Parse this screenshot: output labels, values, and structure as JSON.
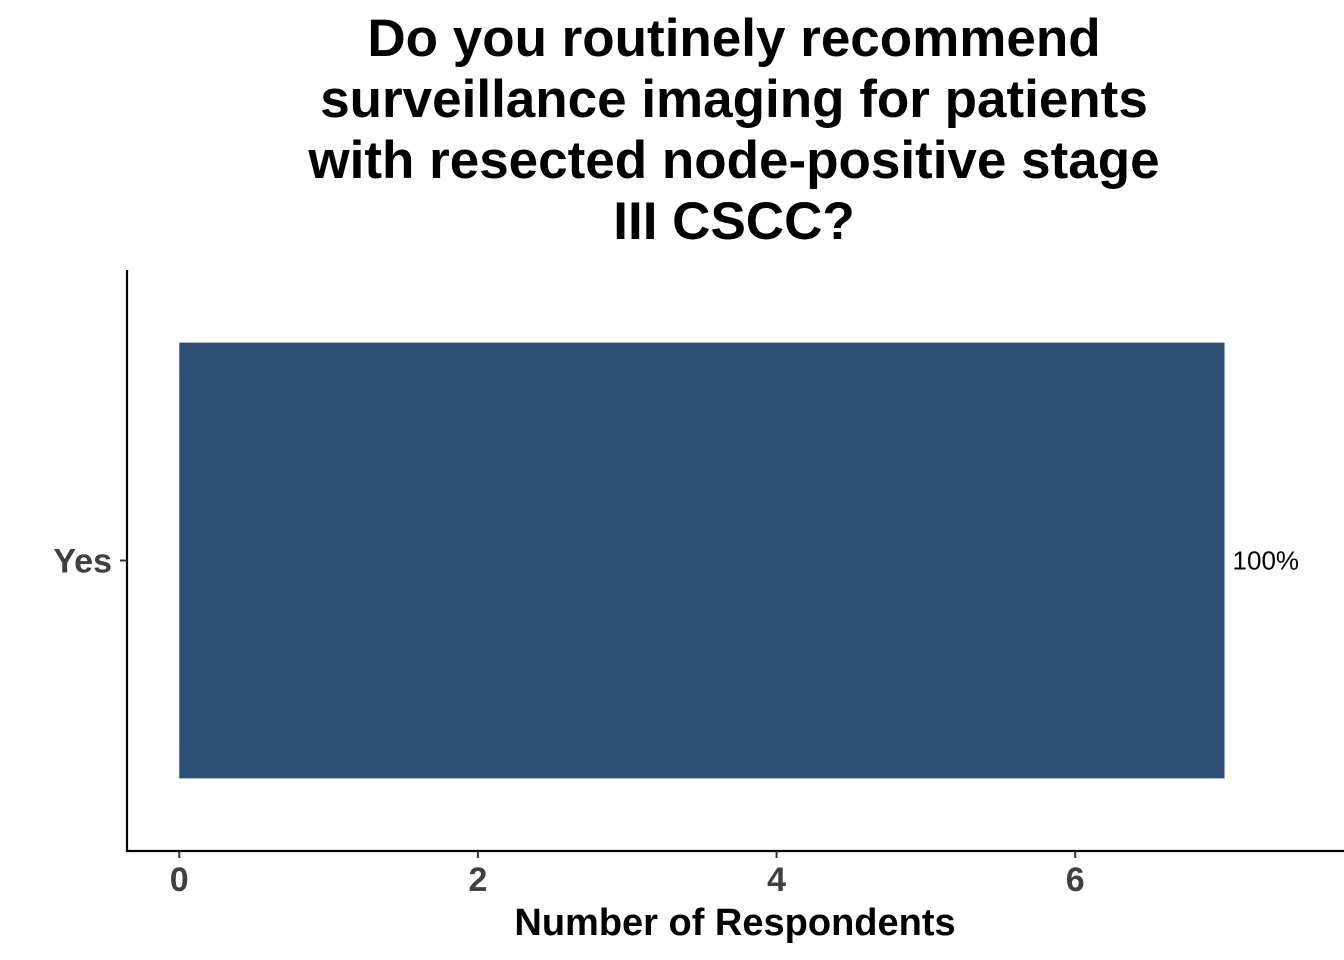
{
  "chart_data": {
    "type": "bar",
    "orientation": "horizontal",
    "title_lines": [
      "Do you routinely recommend",
      "surveillance imaging for patients",
      "with resected node-positive stage",
      "III CSCC?"
    ],
    "categories": [
      "Yes"
    ],
    "values": [
      7
    ],
    "data_labels": [
      "100%"
    ],
    "xlabel": "Number of Respondents",
    "ylabel": "",
    "xlim": [
      -0.35,
      7.8
    ],
    "xticks": [
      0,
      2,
      4,
      6
    ],
    "xtick_labels": [
      "0",
      "2",
      "4",
      "6"
    ],
    "bar_color": "#2c5075",
    "grid": false,
    "legend": "none"
  }
}
